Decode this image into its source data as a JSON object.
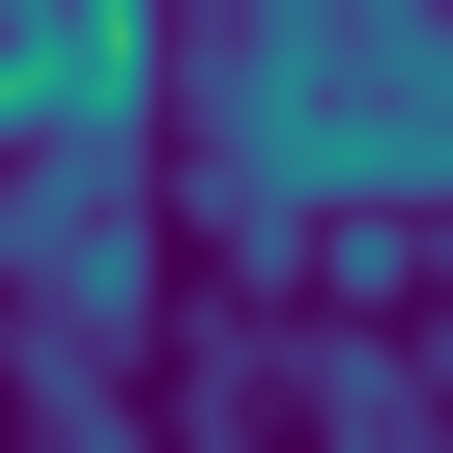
{
  "chart_data": {
    "type": "heatmap",
    "color": "viridis",
    "tick_labels": false,
    "color_range": [
      0,
      1
    ],
    "cells": [
      [
        0.3,
        0.5,
        0.1,
        0.6,
        0.7,
        0.0,
        0.1,
        0.2,
        0.1,
        0.3,
        0.4,
        0.3,
        0.2,
        0.4,
        0.3,
        0.1
      ],
      [
        0.1,
        0.6,
        0.4,
        0.5,
        0.9,
        0.0,
        0.1,
        0.2,
        0.1,
        0.3,
        0.4,
        0.3,
        0.2,
        0.3,
        0.4,
        0.3
      ],
      [
        0.6,
        0.7,
        0.5,
        0.4,
        0.7,
        0.0,
        0.2,
        0.3,
        0.2,
        0.4,
        0.5,
        0.4,
        0.3,
        0.4,
        0.4,
        0.4
      ],
      [
        0.7,
        0.5,
        0.4,
        0.7,
        0.6,
        0.0,
        0.1,
        0.2,
        0.3,
        0.4,
        0.5,
        0.0,
        0.4,
        0.1,
        0.3,
        0.4
      ],
      [
        0.3,
        0.1,
        0.3,
        0.3,
        0.3,
        0.0,
        0.1,
        0.2,
        0.3,
        0.4,
        0.5,
        0.4,
        0.4,
        0.4,
        0.4,
        0.3
      ],
      [
        0.0,
        0.1,
        0.3,
        0.2,
        0.3,
        0.0,
        0.0,
        0.1,
        0.2,
        0.4,
        0.4,
        0.5,
        0.6,
        0.5,
        0.4,
        0.5
      ],
      [
        0.1,
        0.3,
        0.4,
        0.3,
        0.3,
        0.0,
        0.2,
        0.3,
        0.2,
        0.3,
        0.5,
        0.4,
        0.4,
        0.3,
        0.4,
        0.3
      ],
      [
        0.2,
        0.3,
        0.3,
        0.0,
        0.2,
        0.0,
        0.0,
        0.3,
        0.1,
        0.3,
        0.1,
        0.0,
        0.0,
        0.0,
        0.0,
        0.0
      ],
      [
        0.3,
        0.3,
        0.2,
        0.2,
        0.4,
        0.0,
        0.0,
        0.0,
        0.1,
        0.4,
        0.2,
        0.0,
        0.4,
        0.4,
        0.1,
        0.2
      ],
      [
        0.1,
        0.2,
        0.2,
        0.5,
        0.4,
        0.0,
        0.0,
        0.0,
        0.1,
        0.3,
        0.1,
        0.0,
        0.4,
        0.4,
        0.0,
        0.1
      ],
      [
        0.0,
        0.2,
        0.1,
        0.4,
        0.3,
        0.0,
        0.0,
        0.1,
        0.0,
        0.1,
        0.0,
        0.0,
        0.1,
        0.1,
        0.0,
        0.0
      ],
      [
        0.1,
        0.1,
        0.2,
        0.1,
        0.2,
        0.0,
        0.1,
        0.2,
        0.0,
        0.1,
        0.0,
        0.1,
        0.0,
        0.0,
        0.0,
        0.1
      ],
      [
        0.1,
        0.3,
        0.1,
        0.1,
        0.2,
        0.0,
        0.0,
        0.1,
        0.2,
        0.1,
        0.2,
        0.1,
        0.3,
        0.1,
        0.0,
        0.2
      ],
      [
        0.0,
        0.2,
        0.3,
        0.1,
        0.0,
        0.0,
        0.0,
        0.2,
        0.1,
        0.0,
        0.1,
        0.1,
        0.3,
        0.3,
        0.1,
        0.1
      ],
      [
        0.0,
        0.1,
        0.2,
        0.2,
        0.0,
        0.0,
        0.1,
        0.2,
        0.0,
        0.1,
        0.0,
        0.1,
        0.2,
        0.1,
        0.2,
        0.0
      ],
      [
        0.0,
        0.1,
        0.1,
        0.3,
        0.2,
        0.0,
        0.0,
        0.2,
        0.1,
        0.0,
        0.0,
        0.0,
        0.3,
        0.1,
        0.2,
        0.1
      ]
    ]
  }
}
